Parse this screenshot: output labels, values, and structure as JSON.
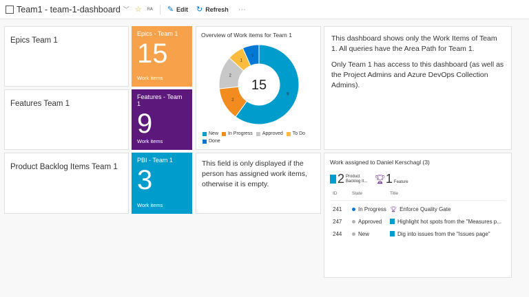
{
  "header": {
    "title": "Team1 - team-1-dashboard",
    "edit": "Edit",
    "refresh": "Refresh",
    "more": "···"
  },
  "tiles": {
    "epics": {
      "title": "Epics Team 1"
    },
    "features": {
      "title": "Features Team 1"
    },
    "pbis": {
      "title": "Product Backlog Items Team 1"
    },
    "epics_count": {
      "title": "Epics - Team 1",
      "value": "15",
      "sub": "Work items",
      "color": "#f7a24b"
    },
    "features_count": {
      "title": "Features - Team 1",
      "value": "9",
      "sub": "Work items",
      "color": "#5c197b"
    },
    "pbi_count": {
      "title": "PBI - Team 1",
      "value": "3",
      "sub": "Work items",
      "color": "#009ccc"
    },
    "note": {
      "text": "This field is only displayed if the person has assigned work items, otherwise it is empty."
    },
    "info": {
      "p1": "This dashboard shows only the Work Items of Team 1. All queries have the Area Path for Team 1.",
      "p2": "Only Team 1 has access to this dashboard (as well as the Project Admins and Azure DevOps Collection Admins)."
    }
  },
  "chart_data": {
    "type": "pie",
    "title": "Overview of Work items for Team 1",
    "total": "15",
    "categories": [
      "New",
      "In Progress",
      "Approved",
      "To Do",
      "Done"
    ],
    "values": [
      9,
      2,
      2,
      1,
      1
    ],
    "colors": [
      "#009ccc",
      "#f28c1e",
      "#c8c8c8",
      "#fbbc3d",
      "#0078d4"
    ]
  },
  "work": {
    "title": "Work assigned to Daniel Kerschagl (3)",
    "summary": [
      {
        "count": "2",
        "label1": "Product",
        "label2": "Backlog It..."
      },
      {
        "count": "1",
        "label1": "",
        "label2": "Feature"
      }
    ],
    "columns": [
      "ID",
      "State",
      "Title"
    ],
    "rows": [
      {
        "id": "241",
        "state": "In Progress",
        "state_color": "#0078d4",
        "type": "feature",
        "title": "Enforce Quality Gate"
      },
      {
        "id": "247",
        "state": "Approved",
        "state_color": "#b2b2b2",
        "type": "pbi",
        "title": "Highlight hot spots from the \"Measures p..."
      },
      {
        "id": "244",
        "state": "New",
        "state_color": "#b2b2b2",
        "type": "pbi",
        "title": "Dig into issues from the \"Issues page\""
      }
    ]
  }
}
